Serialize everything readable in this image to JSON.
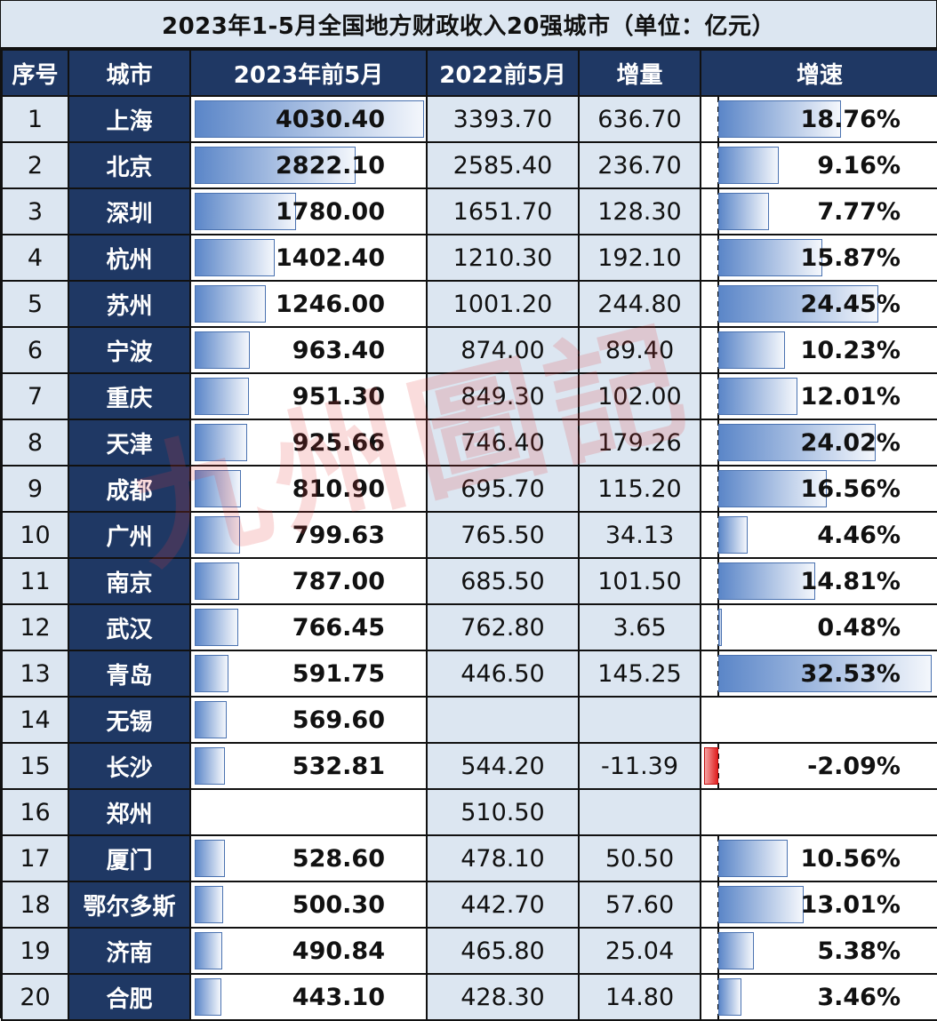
{
  "title": "2023年1-5月全国地方财政收入20强城市（单位：亿元）",
  "watermark": "九州圖記",
  "headers": [
    "序号",
    "城市",
    "2023年前5月",
    "2022前5月",
    "增量",
    "增速"
  ],
  "rows": [
    {
      "idx": "1",
      "city": "上海",
      "cur": "4030.40",
      "prev": "3393.70",
      "inc": "636.70",
      "rate": "18.76%"
    },
    {
      "idx": "2",
      "city": "北京",
      "cur": "2822.10",
      "prev": "2585.40",
      "inc": "236.70",
      "rate": "9.16%"
    },
    {
      "idx": "3",
      "city": "深圳",
      "cur": "1780.00",
      "prev": "1651.70",
      "inc": "128.30",
      "rate": "7.77%"
    },
    {
      "idx": "4",
      "city": "杭州",
      "cur": "1402.40",
      "prev": "1210.30",
      "inc": "192.10",
      "rate": "15.87%"
    },
    {
      "idx": "5",
      "city": "苏州",
      "cur": "1246.00",
      "prev": "1001.20",
      "inc": "244.80",
      "rate": "24.45%"
    },
    {
      "idx": "6",
      "city": "宁波",
      "cur": "963.40",
      "prev": "874.00",
      "inc": "89.40",
      "rate": "10.23%"
    },
    {
      "idx": "7",
      "city": "重庆",
      "cur": "951.30",
      "prev": "849.30",
      "inc": "102.00",
      "rate": "12.01%"
    },
    {
      "idx": "8",
      "city": "天津",
      "cur": "925.66",
      "prev": "746.40",
      "inc": "179.26",
      "rate": "24.02%"
    },
    {
      "idx": "9",
      "city": "成都",
      "cur": "810.90",
      "prev": "695.70",
      "inc": "115.20",
      "rate": "16.56%"
    },
    {
      "idx": "10",
      "city": "广州",
      "cur": "799.63",
      "prev": "765.50",
      "inc": "34.13",
      "rate": "4.46%"
    },
    {
      "idx": "11",
      "city": "南京",
      "cur": "787.00",
      "prev": "685.50",
      "inc": "101.50",
      "rate": "14.81%"
    },
    {
      "idx": "12",
      "city": "武汉",
      "cur": "766.45",
      "prev": "762.80",
      "inc": "3.65",
      "rate": "0.48%"
    },
    {
      "idx": "13",
      "city": "青岛",
      "cur": "591.75",
      "prev": "446.50",
      "inc": "145.25",
      "rate": "32.53%"
    },
    {
      "idx": "14",
      "city": "无锡",
      "cur": "569.60",
      "prev": "",
      "inc": "",
      "rate": ""
    },
    {
      "idx": "15",
      "city": "长沙",
      "cur": "532.81",
      "prev": "544.20",
      "inc": "-11.39",
      "rate": "-2.09%"
    },
    {
      "idx": "16",
      "city": "郑州",
      "cur": "",
      "prev": "510.50",
      "inc": "",
      "rate": ""
    },
    {
      "idx": "17",
      "city": "厦门",
      "cur": "528.60",
      "prev": "478.10",
      "inc": "50.50",
      "rate": "10.56%"
    },
    {
      "idx": "18",
      "city": "鄂尔多斯",
      "cur": "500.30",
      "prev": "442.70",
      "inc": "57.60",
      "rate": "13.01%"
    },
    {
      "idx": "19",
      "city": "济南",
      "cur": "490.84",
      "prev": "465.80",
      "inc": "25.04",
      "rate": "5.38%"
    },
    {
      "idx": "20",
      "city": "合肥",
      "cur": "443.10",
      "prev": "428.30",
      "inc": "14.80",
      "rate": "3.46%"
    }
  ],
  "colors": {
    "header_bg": "#1f3864",
    "light_bg": "#dce6f1",
    "bar_blue": "#5b86c8",
    "bar_red": "#e02020"
  },
  "chart_data": {
    "type": "table",
    "title": "2023年1-5月全国地方财政收入20强城市（单位：亿元）",
    "columns": [
      "序号",
      "城市",
      "2023年前5月",
      "2022前5月",
      "增量",
      "增速"
    ],
    "categories": [
      "上海",
      "北京",
      "深圳",
      "杭州",
      "苏州",
      "宁波",
      "重庆",
      "天津",
      "成都",
      "广州",
      "南京",
      "武汉",
      "青岛",
      "无锡",
      "长沙",
      "郑州",
      "厦门",
      "鄂尔多斯",
      "济南",
      "合肥"
    ],
    "series": [
      {
        "name": "2023年前5月",
        "values": [
          4030.4,
          2822.1,
          1780.0,
          1402.4,
          1246.0,
          963.4,
          951.3,
          925.66,
          810.9,
          799.63,
          787.0,
          766.45,
          591.75,
          569.6,
          532.81,
          null,
          528.6,
          500.3,
          490.84,
          443.1
        ]
      },
      {
        "name": "2022前5月",
        "values": [
          3393.7,
          2585.4,
          1651.7,
          1210.3,
          1001.2,
          874.0,
          849.3,
          746.4,
          695.7,
          765.5,
          685.5,
          762.8,
          446.5,
          null,
          544.2,
          510.5,
          478.1,
          442.7,
          465.8,
          428.3
        ]
      },
      {
        "name": "增量",
        "values": [
          636.7,
          236.7,
          128.3,
          192.1,
          244.8,
          89.4,
          102.0,
          179.26,
          115.2,
          34.13,
          101.5,
          3.65,
          145.25,
          null,
          -11.39,
          null,
          50.5,
          57.6,
          25.04,
          14.8
        ]
      },
      {
        "name": "增速(%)",
        "values": [
          18.76,
          9.16,
          7.77,
          15.87,
          24.45,
          10.23,
          12.01,
          24.02,
          16.56,
          4.46,
          14.81,
          0.48,
          32.53,
          null,
          -2.09,
          null,
          10.56,
          13.01,
          5.38,
          3.46
        ]
      }
    ]
  }
}
